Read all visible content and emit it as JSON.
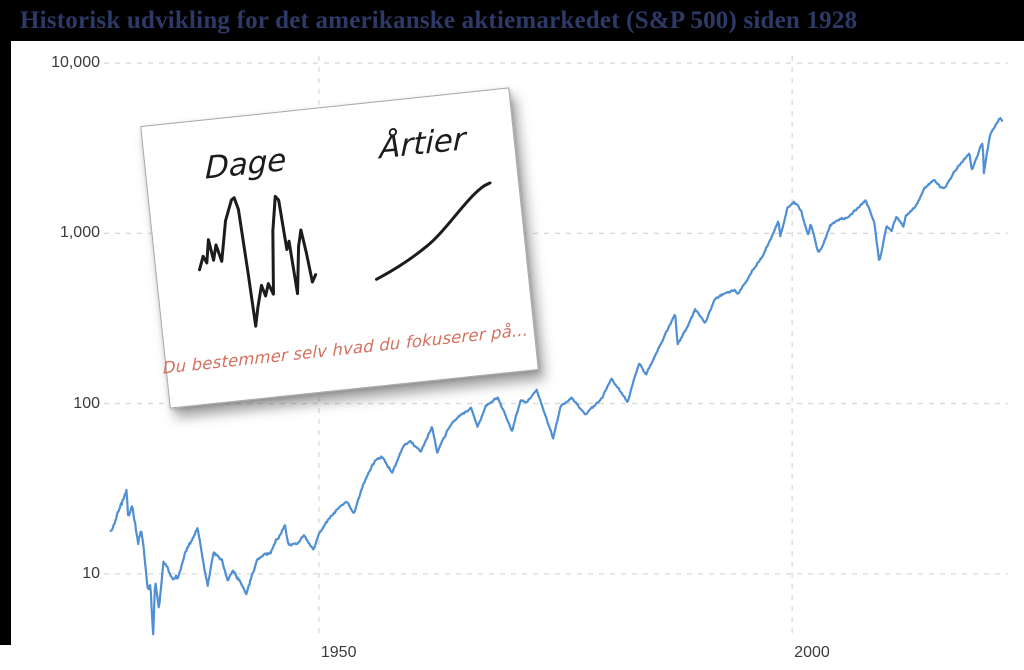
{
  "title": "Historisk udvikling for det amerikanske aktiemarkedet (S&P 500) siden 1928",
  "colors": {
    "title": "#2d3a68",
    "frame": "#000000",
    "line": "#4f8fd3",
    "grid": "#d9d9d9",
    "tick_label": "#3b3b3b",
    "note_ink": "#1c1c1c",
    "note_accent": "#d4705e"
  },
  "note_card": {
    "left_label": "Dage",
    "right_label": "Årtier",
    "caption": "Du bestemmer selv hvad du fokuserer på..."
  },
  "chart_data": {
    "type": "line",
    "title": "Historisk udvikling for det amerikanske aktiemarkedet (S&P 500) siden 1928",
    "xlabel": "",
    "ylabel": "",
    "yscale": "log",
    "grid": "dashed",
    "legend_position": "none",
    "xlim": [
      1927.3,
      2022.8
    ],
    "ylim": [
      4.2,
      11000
    ],
    "y_ticks": [
      {
        "label": "10,000",
        "value": 10000
      },
      {
        "label": "1,000",
        "value": 1000
      },
      {
        "label": "100",
        "value": 100
      },
      {
        "label": "10",
        "value": 10
      }
    ],
    "x_ticks": [
      {
        "label": "1950",
        "value": 1950
      },
      {
        "label": "2000",
        "value": 2000
      }
    ],
    "series": [
      {
        "name": "S&P 500",
        "points": [
          [
            1928.0,
            17.6
          ],
          [
            1928.5,
            19.9
          ],
          [
            1929.0,
            24.4
          ],
          [
            1929.7,
            31.3
          ],
          [
            1929.85,
            21.4
          ],
          [
            1930.3,
            25.3
          ],
          [
            1930.9,
            15.3
          ],
          [
            1931.2,
            18.2
          ],
          [
            1931.5,
            14.3
          ],
          [
            1931.9,
            8.1
          ],
          [
            1932.2,
            8.7
          ],
          [
            1932.5,
            4.4
          ],
          [
            1932.7,
            9.3
          ],
          [
            1933.1,
            6.2
          ],
          [
            1933.6,
            11.8
          ],
          [
            1934.1,
            10.5
          ],
          [
            1934.6,
            9.1
          ],
          [
            1935.2,
            9.7
          ],
          [
            1935.9,
            13.4
          ],
          [
            1936.9,
            17.2
          ],
          [
            1937.2,
            18.6
          ],
          [
            1937.95,
            10.4
          ],
          [
            1938.25,
            8.6
          ],
          [
            1938.85,
            13.1
          ],
          [
            1939.7,
            12.4
          ],
          [
            1940.35,
            9.2
          ],
          [
            1940.9,
            10.5
          ],
          [
            1941.9,
            8.7
          ],
          [
            1942.3,
            7.6
          ],
          [
            1943.5,
            12.2
          ],
          [
            1944.9,
            13.3
          ],
          [
            1945.95,
            17.4
          ],
          [
            1946.4,
            19.2
          ],
          [
            1946.8,
            14.8
          ],
          [
            1947.9,
            15.3
          ],
          [
            1948.4,
            16.9
          ],
          [
            1948.9,
            15.2
          ],
          [
            1949.45,
            14.0
          ],
          [
            1949.9,
            16.8
          ],
          [
            1950.9,
            20.4
          ],
          [
            1951.9,
            23.8
          ],
          [
            1952.9,
            26.6
          ],
          [
            1953.7,
            22.8
          ],
          [
            1954.9,
            36.0
          ],
          [
            1955.9,
            45.5
          ],
          [
            1956.6,
            49.5
          ],
          [
            1957.75,
            39.0
          ],
          [
            1958.9,
            55.2
          ],
          [
            1959.6,
            60.5
          ],
          [
            1960.8,
            52.5
          ],
          [
            1961.95,
            72.6
          ],
          [
            1962.5,
            52.3
          ],
          [
            1963.9,
            75.0
          ],
          [
            1964.9,
            84.8
          ],
          [
            1966.1,
            94.0
          ],
          [
            1966.75,
            73.2
          ],
          [
            1967.7,
            97.6
          ],
          [
            1968.9,
            108.4
          ],
          [
            1970.4,
            69.3
          ],
          [
            1971.3,
            104.0
          ],
          [
            1972.0,
            102.1
          ],
          [
            1973.0,
            120.2
          ],
          [
            1974.75,
            62.3
          ],
          [
            1975.5,
            95.6
          ],
          [
            1976.7,
            107.8
          ],
          [
            1978.2,
            86.9
          ],
          [
            1979.9,
            107.9
          ],
          [
            1980.9,
            140.5
          ],
          [
            1982.6,
            102.4
          ],
          [
            1983.8,
            172.7
          ],
          [
            1984.55,
            147.8
          ],
          [
            1985.9,
            211.3
          ],
          [
            1987.65,
            336.8
          ],
          [
            1987.9,
            223.9
          ],
          [
            1988.9,
            277.7
          ],
          [
            1989.75,
            359.8
          ],
          [
            1990.78,
            295.5
          ],
          [
            1991.9,
            417.1
          ],
          [
            1993.9,
            466.5
          ],
          [
            1994.3,
            438.9
          ],
          [
            1995.9,
            615.9
          ],
          [
            1996.9,
            740.7
          ],
          [
            1997.9,
            970.4
          ],
          [
            1998.55,
            1186.8
          ],
          [
            1998.75,
            957.3
          ],
          [
            1999.5,
            1418.8
          ],
          [
            2000.2,
            1527.5
          ],
          [
            2000.65,
            1430.0
          ],
          [
            2001.0,
            1320.3
          ],
          [
            2001.7,
            965.8
          ],
          [
            2001.95,
            1148.1
          ],
          [
            2002.75,
            776.8
          ],
          [
            2003.2,
            841.2
          ],
          [
            2004.0,
            1111.9
          ],
          [
            2005.0,
            1211.9
          ],
          [
            2006.0,
            1248.3
          ],
          [
            2007.0,
            1418.3
          ],
          [
            2007.75,
            1565.2
          ],
          [
            2008.7,
            1166.4
          ],
          [
            2008.9,
            903.3
          ],
          [
            2009.2,
            676.5
          ],
          [
            2010.0,
            1115.1
          ],
          [
            2010.5,
            1030.7
          ],
          [
            2011.0,
            1257.6
          ],
          [
            2011.75,
            1099.2
          ],
          [
            2012.0,
            1257.6
          ],
          [
            2013.0,
            1426.2
          ],
          [
            2014.0,
            1848.4
          ],
          [
            2015.0,
            2058.9
          ],
          [
            2015.65,
            1867.6
          ],
          [
            2016.1,
            1829.1
          ],
          [
            2017.0,
            2238.8
          ],
          [
            2018.0,
            2673.6
          ],
          [
            2018.73,
            2925.5
          ],
          [
            2018.98,
            2351.1
          ],
          [
            2019.9,
            3230.8
          ],
          [
            2020.14,
            3386.2
          ],
          [
            2020.23,
            2237.4
          ],
          [
            2020.9,
            3756.1
          ],
          [
            2021.9,
            4766.2
          ],
          [
            2022.0,
            4796.6
          ],
          [
            2022.2,
            4530.4
          ]
        ]
      }
    ]
  }
}
